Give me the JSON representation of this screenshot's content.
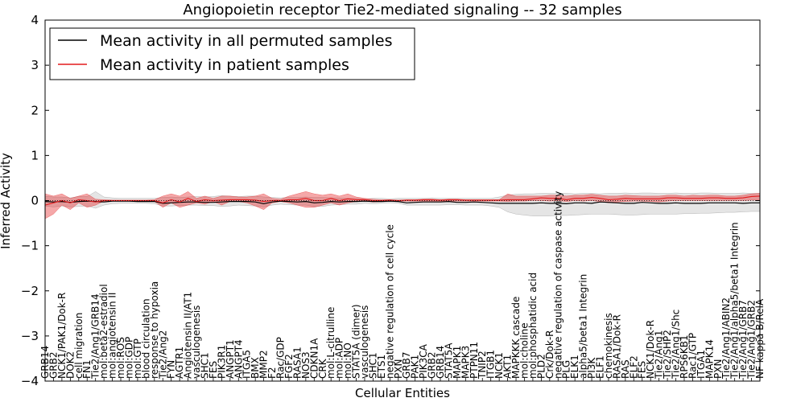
{
  "chart_data": {
    "type": "line",
    "title": "Angiopoietin receptor Tie2-mediated signaling -- 32 samples",
    "xlabel": "Cellular Entities",
    "ylabel": "Inferred Activity",
    "ylim": [
      -4,
      4
    ],
    "yticks": [
      "4",
      "3",
      "2",
      "1",
      "0",
      "−1",
      "−2",
      "−3",
      "−4"
    ],
    "legend": {
      "position": "top-left",
      "entries": [
        {
          "label": "Mean activity in all permuted samples",
          "color": "#000000"
        },
        {
          "label": "Mean activity in patient samples",
          "color": "#e41a1c"
        }
      ]
    },
    "categories": [
      "GRB14",
      "GRB2",
      "NCK1/PAK1/Dok-R",
      "DOK2",
      "cell migration",
      "FN1",
      "Tie2/Ang1/GRB14",
      "mol:beta2-estradiol",
      "mol:angiotensin II",
      "mol:ROS",
      "mol:GDP",
      "mol:GTP",
      "blood circulation",
      "response to hypoxia",
      "Tie2/Ang2",
      "FYN",
      "AGTR1",
      "Angiotensin II/AT1",
      "vasculogenesis",
      "SHC1",
      "FES",
      "PIK3R1",
      "ANGPT1",
      "ANGPT4",
      "ITGA5",
      "BMX",
      "MMP2",
      "F2",
      "Rac/GDP",
      "FGF2",
      "RASA1",
      "NOS3",
      "CDKN1A",
      "CRK",
      "mol:L-citrulline",
      "mol:ADP",
      "mol:NO",
      "STAT5A (dimer)",
      "vasculogenesis",
      "SHC1",
      "ETS1",
      "negative regulation of cell cycle",
      "PXN",
      "GRB7",
      "PAK1",
      "PIK3CA",
      "GRB2",
      "GRB14",
      "STAT5A",
      "MAPK1",
      "MAPK3",
      "PTPN11",
      "TNIP2",
      "ITGB1",
      "NCK1",
      "AKT1",
      "MAPKKK cascade",
      "mol:choline",
      "mol:phosphatidic acid",
      "PLD2",
      "Crk/Dok-R",
      "negative regulation of caspase activity",
      "PLG",
      "ELK1",
      "alpha5/beta1 Integrin",
      "PI3K",
      "ELF1",
      "chemokinesis",
      "RASA1/Dok-R",
      "RAS",
      "ELF2",
      "FES",
      "NCK1/Dok-R",
      "Tie2/Ang1",
      "Tie2/SHP2",
      "Tie2/Ang1/Shc",
      "RPS6KB1",
      "Rac1/GTP",
      "ITGA1",
      "MAPK14",
      "PXN",
      "Tie2/Ang1/ABIN2",
      "Tie2/Ang1/alpha5/beta1 Integrin",
      "Tie2/Ang1/GRB7",
      "Tie2/Ang1/GRB2",
      "NF kappa B/RelA"
    ],
    "series": [
      {
        "name": "Mean activity in all permuted samples",
        "values": [
          -0.02,
          -0.03,
          -0.02,
          -0.04,
          -0.02,
          -0.01,
          -0.02,
          -0.03,
          -0.01,
          -0.01,
          -0.01,
          -0.02,
          -0.02,
          -0.02,
          -0.06,
          -0.05,
          -0.04,
          -0.03,
          -0.03,
          -0.04,
          -0.04,
          -0.03,
          -0.02,
          -0.02,
          -0.02,
          -0.03,
          -0.07,
          -0.03,
          -0.01,
          -0.02,
          -0.03,
          -0.02,
          -0.05,
          -0.04,
          -0.02,
          -0.03,
          -0.02,
          -0.02,
          -0.01,
          -0.02,
          -0.02,
          -0.01,
          -0.02,
          -0.05,
          -0.04,
          -0.03,
          -0.03,
          -0.03,
          -0.02,
          -0.04,
          -0.04,
          -0.03,
          -0.04,
          -0.05,
          -0.06,
          -0.06,
          -0.06,
          -0.06,
          -0.06,
          -0.05,
          -0.06,
          -0.06,
          -0.07,
          -0.05,
          -0.05,
          -0.06,
          -0.03,
          -0.04,
          -0.05,
          -0.06,
          -0.06,
          -0.04,
          -0.05,
          -0.06,
          -0.06,
          -0.05,
          -0.06,
          -0.06,
          -0.06,
          -0.05,
          -0.05,
          -0.05,
          -0.05,
          -0.06,
          -0.05,
          -0.05
        ],
        "band_low": [
          -0.12,
          -0.14,
          -0.12,
          -0.14,
          -0.13,
          -0.12,
          -0.17,
          -0.1,
          -0.07,
          -0.06,
          -0.06,
          -0.06,
          -0.06,
          -0.07,
          -0.12,
          -0.12,
          -0.11,
          -0.1,
          -0.1,
          -0.11,
          -0.11,
          -0.13,
          -0.12,
          -0.1,
          -0.11,
          -0.12,
          -0.14,
          -0.1,
          -0.08,
          -0.09,
          -0.1,
          -0.1,
          -0.13,
          -0.13,
          -0.1,
          -0.09,
          -0.08,
          -0.08,
          -0.06,
          -0.07,
          -0.06,
          -0.05,
          -0.06,
          -0.1,
          -0.1,
          -0.1,
          -0.1,
          -0.1,
          -0.09,
          -0.09,
          -0.1,
          -0.1,
          -0.1,
          -0.12,
          -0.15,
          -0.25,
          -0.3,
          -0.32,
          -0.34,
          -0.34,
          -0.34,
          -0.33,
          -0.33,
          -0.32,
          -0.31,
          -0.3,
          -0.3,
          -0.3,
          -0.31,
          -0.32,
          -0.32,
          -0.31,
          -0.3,
          -0.3,
          -0.3,
          -0.3,
          -0.29,
          -0.29,
          -0.28,
          -0.28,
          -0.27,
          -0.26,
          -0.26,
          -0.25,
          -0.24,
          -0.24
        ],
        "band_high": [
          0.1,
          0.08,
          0.08,
          0.06,
          0.09,
          0.09,
          0.2,
          0.08,
          0.06,
          0.05,
          0.05,
          0.05,
          0.05,
          0.05,
          0.07,
          0.08,
          0.07,
          0.08,
          0.09,
          0.08,
          0.09,
          0.11,
          0.1,
          0.09,
          0.1,
          0.1,
          0.08,
          0.07,
          0.06,
          0.07,
          0.07,
          0.08,
          0.07,
          0.07,
          0.06,
          0.06,
          0.05,
          0.05,
          0.04,
          0.05,
          0.05,
          0.04,
          0.05,
          0.05,
          0.05,
          0.05,
          0.06,
          0.05,
          0.05,
          0.05,
          0.05,
          0.05,
          0.05,
          0.05,
          0.08,
          0.12,
          0.14,
          0.15,
          0.15,
          0.16,
          0.16,
          0.16,
          0.16,
          0.15,
          0.16,
          0.16,
          0.15,
          0.16,
          0.16,
          0.17,
          0.16,
          0.17,
          0.17,
          0.16,
          0.16,
          0.17,
          0.16,
          0.16,
          0.17,
          0.17,
          0.16,
          0.16,
          0.16,
          0.17,
          0.16,
          0.16
        ]
      },
      {
        "name": "Mean activity in patient samples",
        "values": [
          -0.1,
          -0.05,
          0.0,
          -0.05,
          0.02,
          0.0,
          -0.03,
          0.0,
          0.0,
          0.0,
          0.0,
          0.0,
          0.0,
          0.0,
          -0.05,
          0.02,
          -0.03,
          0.05,
          -0.02,
          0.02,
          0.0,
          0.01,
          0.02,
          0.02,
          0.02,
          0.01,
          -0.02,
          0.0,
          0.0,
          0.02,
          0.02,
          0.05,
          0.0,
          0.0,
          0.05,
          0.0,
          0.04,
          0.02,
          0.02,
          0.0,
          0.0,
          0.01,
          0.0,
          0.01,
          0.01,
          0.02,
          0.02,
          0.01,
          0.02,
          0.02,
          0.01,
          0.01,
          0.01,
          0.01,
          0.01,
          0.02,
          0.02,
          0.02,
          0.04,
          0.06,
          0.05,
          0.05,
          0.02,
          0.05,
          0.05,
          0.07,
          0.05,
          0.02,
          0.03,
          0.05,
          0.04,
          0.04,
          0.04,
          0.04,
          0.06,
          0.06,
          0.05,
          0.05,
          0.05,
          0.06,
          0.06,
          0.05,
          0.05,
          0.06,
          0.09,
          0.1
        ],
        "band_low": [
          -0.4,
          -0.3,
          -0.1,
          -0.2,
          -0.05,
          -0.15,
          -0.1,
          -0.01,
          -0.01,
          -0.01,
          -0.01,
          -0.01,
          -0.01,
          -0.02,
          -0.15,
          -0.05,
          -0.15,
          -0.1,
          -0.05,
          -0.08,
          -0.02,
          -0.1,
          -0.02,
          -0.02,
          -0.05,
          -0.12,
          -0.2,
          -0.05,
          -0.02,
          -0.05,
          -0.1,
          -0.15,
          -0.15,
          -0.1,
          -0.05,
          -0.1,
          -0.05,
          -0.02,
          -0.01,
          -0.03,
          -0.02,
          -0.01,
          -0.01,
          -0.01,
          -0.01,
          -0.01,
          -0.01,
          -0.01,
          -0.01,
          -0.01,
          -0.01,
          -0.01,
          -0.01,
          -0.01,
          -0.01,
          -0.02,
          -0.01,
          -0.01,
          0.0,
          0.0,
          -0.01,
          0.0,
          -0.02,
          0.0,
          -0.01,
          0.0,
          -0.02,
          -0.05,
          -0.03,
          -0.02,
          -0.01,
          -0.01,
          -0.02,
          -0.03,
          -0.01,
          0.0,
          0.0,
          0.0,
          0.0,
          0.0,
          0.0,
          0.0,
          0.0,
          0.0,
          0.01,
          0.01
        ],
        "band_high": [
          0.15,
          0.1,
          0.15,
          0.05,
          0.1,
          0.15,
          0.03,
          0.02,
          0.01,
          0.01,
          0.01,
          0.01,
          0.01,
          0.02,
          0.1,
          0.15,
          0.1,
          0.2,
          0.05,
          0.1,
          0.05,
          0.1,
          0.1,
          0.08,
          0.08,
          0.1,
          0.15,
          0.05,
          0.03,
          0.1,
          0.15,
          0.2,
          0.15,
          0.12,
          0.15,
          0.1,
          0.15,
          0.08,
          0.05,
          0.03,
          0.02,
          0.02,
          0.01,
          0.02,
          0.02,
          0.03,
          0.03,
          0.02,
          0.03,
          0.03,
          0.02,
          0.02,
          0.02,
          0.02,
          0.02,
          0.15,
          0.1,
          0.1,
          0.1,
          0.1,
          0.12,
          0.12,
          0.1,
          0.12,
          0.12,
          0.14,
          0.12,
          0.1,
          0.1,
          0.12,
          0.11,
          0.1,
          0.1,
          0.1,
          0.12,
          0.12,
          0.1,
          0.12,
          0.11,
          0.12,
          0.12,
          0.1,
          0.1,
          0.12,
          0.15,
          0.16
        ]
      }
    ]
  }
}
